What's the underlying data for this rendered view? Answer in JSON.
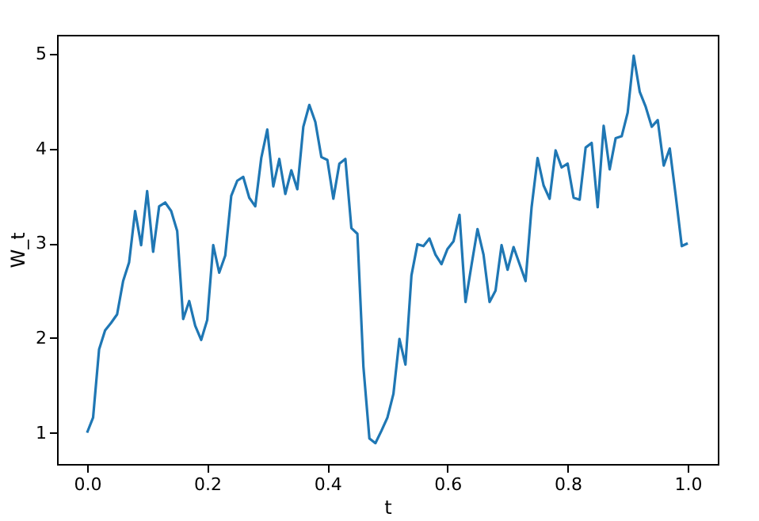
{
  "chart_data": {
    "type": "line",
    "xlabel": "t",
    "ylabel": "W_t",
    "x": [
      0.0,
      0.01,
      0.02,
      0.03,
      0.04,
      0.05,
      0.06,
      0.07,
      0.08,
      0.09,
      0.1,
      0.11,
      0.12,
      0.13,
      0.14,
      0.15,
      0.16,
      0.17,
      0.18,
      0.19,
      0.2,
      0.21,
      0.22,
      0.23,
      0.24,
      0.25,
      0.26,
      0.27,
      0.28,
      0.29,
      0.3,
      0.31,
      0.32,
      0.33,
      0.34,
      0.35,
      0.36,
      0.37,
      0.38,
      0.39,
      0.4,
      0.41,
      0.42,
      0.43,
      0.44,
      0.45,
      0.46,
      0.47,
      0.48,
      0.49,
      0.5,
      0.51,
      0.52,
      0.53,
      0.54,
      0.55,
      0.56,
      0.57,
      0.58,
      0.59,
      0.6,
      0.61,
      0.62,
      0.63,
      0.64,
      0.65,
      0.66,
      0.67,
      0.68,
      0.69,
      0.7,
      0.71,
      0.72,
      0.73,
      0.74,
      0.75,
      0.76,
      0.77,
      0.78,
      0.79,
      0.8,
      0.81,
      0.82,
      0.83,
      0.84,
      0.85,
      0.86,
      0.87,
      0.88,
      0.89,
      0.9,
      0.91,
      0.92,
      0.93,
      0.94,
      0.95,
      0.96,
      0.97,
      0.98,
      0.99,
      1.0
    ],
    "series": [
      {
        "color": "#1f77b4",
        "values": [
          1.0,
          1.16,
          1.88,
          2.08,
          2.16,
          2.25,
          2.6,
          2.8,
          3.34,
          2.98,
          3.55,
          2.91,
          3.39,
          3.43,
          3.34,
          3.13,
          2.2,
          2.39,
          2.13,
          1.98,
          2.19,
          2.98,
          2.69,
          2.87,
          3.5,
          3.66,
          3.7,
          3.48,
          3.39,
          3.9,
          4.2,
          3.6,
          3.89,
          3.52,
          3.77,
          3.57,
          4.23,
          4.46,
          4.28,
          3.91,
          3.88,
          3.47,
          3.84,
          3.89,
          3.16,
          3.1,
          1.7,
          0.94,
          0.89,
          1.02,
          1.16,
          1.41,
          1.99,
          1.72,
          2.66,
          2.99,
          2.97,
          3.05,
          2.88,
          2.78,
          2.94,
          3.02,
          3.3,
          2.38,
          2.77,
          3.15,
          2.88,
          2.38,
          2.5,
          2.98,
          2.72,
          2.96,
          2.78,
          2.6,
          3.38,
          3.9,
          3.61,
          3.47,
          3.98,
          3.8,
          3.84,
          3.48,
          3.46,
          4.01,
          4.06,
          3.38,
          4.24,
          3.78,
          4.11,
          4.13,
          4.38,
          4.98,
          4.6,
          4.44,
          4.23,
          4.3,
          3.82,
          4.0,
          3.5,
          2.97,
          3.0
        ]
      }
    ],
    "xlim": [
      -0.05,
      1.05
    ],
    "ylim": [
      0.67,
      5.2
    ],
    "xticks": [
      {
        "value": 0,
        "label": "0.0"
      },
      {
        "value": 0.2,
        "label": "0.2"
      },
      {
        "value": 0.4,
        "label": "0.4"
      },
      {
        "value": 0.6,
        "label": "0.6"
      },
      {
        "value": 0.8,
        "label": "0.8"
      },
      {
        "value": 1,
        "label": "1.0"
      }
    ],
    "yticks": [
      1,
      2,
      3,
      4,
      5
    ],
    "grid": false,
    "marker": "none",
    "line_style": "solid"
  }
}
